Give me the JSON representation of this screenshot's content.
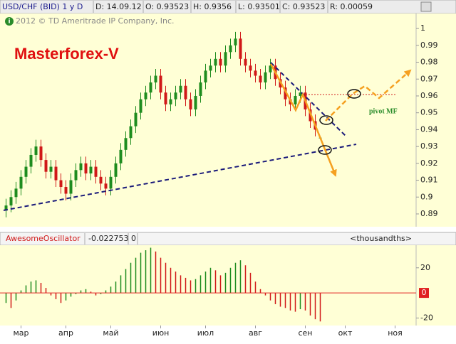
{
  "chart_data": [
    {
      "type": "candlestick",
      "title": "USD/CHF (BID) 1 y D",
      "header_fields": [
        "D: 14.09.12",
        "O: 0.93523",
        "H: 0.9356",
        "L: 0.93501",
        "C: 0.93523",
        "R: 0.00059"
      ],
      "copyright": "2012 © TD Ameritrade IP Company, Inc.",
      "annotations": [
        "Masterforex-V",
        "pivot MF"
      ],
      "categories": [
        null,
        null,
        null,
        null,
        null,
        null,
        null,
        null,
        null,
        null,
        null,
        null,
        null,
        null,
        null,
        null,
        null,
        null,
        null,
        null,
        null,
        null,
        null,
        null,
        null,
        null,
        null,
        null,
        null,
        null,
        null,
        null,
        null,
        null,
        null,
        null,
        null,
        null,
        null,
        null,
        null,
        null,
        null,
        null,
        null,
        null,
        null,
        null,
        null,
        null,
        null,
        null,
        null,
        null,
        null,
        null,
        null,
        null,
        null,
        null,
        null,
        null,
        null,
        null
      ],
      "open": [
        0.892,
        0.895,
        0.9,
        0.905,
        0.912,
        0.918,
        0.925,
        0.93,
        0.922,
        0.915,
        0.918,
        0.91,
        0.906,
        0.902,
        0.91,
        0.916,
        0.92,
        0.914,
        0.918,
        0.912,
        0.908,
        0.905,
        0.912,
        0.92,
        0.928,
        0.935,
        0.942,
        0.95,
        0.958,
        0.962,
        0.968,
        0.972,
        0.962,
        0.955,
        0.958,
        0.962,
        0.966,
        0.958,
        0.952,
        0.96,
        0.968,
        0.975,
        0.978,
        0.982,
        0.978,
        0.986,
        0.99,
        0.994,
        0.982,
        0.978,
        0.975,
        0.972,
        0.968,
        0.974,
        0.978,
        0.97,
        0.965,
        0.958,
        0.955,
        0.96,
        0.962,
        0.952,
        0.945,
        0.93523
      ],
      "high": [
        0.899,
        0.904,
        0.909,
        0.916,
        0.922,
        0.929,
        0.934,
        0.934,
        0.926,
        0.922,
        0.922,
        0.914,
        0.91,
        0.914,
        0.92,
        0.924,
        0.924,
        0.922,
        0.922,
        0.916,
        0.912,
        0.916,
        0.924,
        0.932,
        0.939,
        0.946,
        0.954,
        0.962,
        0.966,
        0.972,
        0.976,
        0.976,
        0.966,
        0.962,
        0.966,
        0.97,
        0.97,
        0.962,
        0.964,
        0.972,
        0.979,
        0.982,
        0.986,
        0.986,
        0.99,
        0.994,
        0.998,
        0.998,
        0.986,
        0.982,
        0.979,
        0.976,
        0.978,
        0.982,
        0.982,
        0.974,
        0.969,
        0.962,
        0.964,
        0.966,
        0.966,
        0.956,
        0.949,
        0.9356
      ],
      "low": [
        0.888,
        0.891,
        0.896,
        0.901,
        0.908,
        0.914,
        0.921,
        0.918,
        0.911,
        0.911,
        0.906,
        0.902,
        0.898,
        0.898,
        0.906,
        0.912,
        0.91,
        0.91,
        0.908,
        0.904,
        0.901,
        0.901,
        0.908,
        0.916,
        0.924,
        0.931,
        0.938,
        0.946,
        0.954,
        0.958,
        0.964,
        0.958,
        0.951,
        0.951,
        0.954,
        0.958,
        0.954,
        0.948,
        0.948,
        0.956,
        0.964,
        0.971,
        0.974,
        0.974,
        0.974,
        0.982,
        0.986,
        0.978,
        0.974,
        0.971,
        0.968,
        0.964,
        0.964,
        0.97,
        0.966,
        0.961,
        0.954,
        0.951,
        0.951,
        0.956,
        0.948,
        0.941,
        0.936,
        0.93501
      ],
      "close": [
        0.895,
        0.9,
        0.905,
        0.912,
        0.918,
        0.925,
        0.93,
        0.922,
        0.915,
        0.918,
        0.91,
        0.906,
        0.902,
        0.91,
        0.916,
        0.92,
        0.914,
        0.918,
        0.912,
        0.908,
        0.905,
        0.912,
        0.92,
        0.928,
        0.935,
        0.942,
        0.95,
        0.958,
        0.962,
        0.968,
        0.972,
        0.962,
        0.955,
        0.958,
        0.962,
        0.966,
        0.958,
        0.952,
        0.96,
        0.968,
        0.975,
        0.978,
        0.982,
        0.978,
        0.986,
        0.99,
        0.994,
        0.982,
        0.978,
        0.975,
        0.972,
        0.968,
        0.974,
        0.978,
        0.97,
        0.965,
        0.958,
        0.955,
        0.96,
        0.962,
        0.952,
        0.945,
        0.94,
        0.93523
      ],
      "up_color": "#1e8c1e",
      "down_color": "#d01818",
      "ylim": [
        0.8824,
        1.0089
      ],
      "yticks": [
        0.89,
        0.9,
        0.91,
        0.92,
        0.93,
        0.94,
        0.95,
        0.96,
        0.97,
        0.98,
        0.99,
        1
      ],
      "xlim": [
        -0.5,
        82.5
      ],
      "xticks": [
        {
          "value": 3,
          "label": "мар"
        },
        {
          "value": 12,
          "label": "апр"
        },
        {
          "value": 21,
          "label": "май"
        },
        {
          "value": 31,
          "label": "июн"
        },
        {
          "value": 40,
          "label": "июл"
        },
        {
          "value": 50,
          "label": "авг"
        },
        {
          "value": 60,
          "label": "сен"
        },
        {
          "value": 68,
          "label": "окт"
        },
        {
          "value": 78,
          "label": "ноя"
        }
      ]
    },
    {
      "type": "histogram_oscillator",
      "title": "AwesomeOscillator",
      "readout": "-0.022753",
      "readout2": "0",
      "units": "<thousandths>",
      "values": [
        -8,
        -12,
        -6,
        2,
        6,
        9,
        10,
        8,
        4,
        -2,
        -5,
        -8,
        -6,
        -3,
        -1,
        2,
        3,
        1,
        -2,
        -1,
        2,
        5,
        9,
        14,
        19,
        24,
        28,
        32,
        34,
        36,
        33,
        28,
        24,
        20,
        17,
        14,
        12,
        10,
        11,
        14,
        17,
        20,
        18,
        14,
        16,
        20,
        24,
        26,
        22,
        16,
        9,
        3,
        -2,
        -6,
        -9,
        -11,
        -12,
        -14,
        -15,
        -13,
        -14,
        -18,
        -21,
        -22.753
      ],
      "up_color": "#1e8c1e",
      "down_color": "#d01818",
      "zero_color": "#e02020",
      "ylim": [
        -26,
        38
      ],
      "yticks": [
        -20,
        0,
        20
      ]
    }
  ]
}
